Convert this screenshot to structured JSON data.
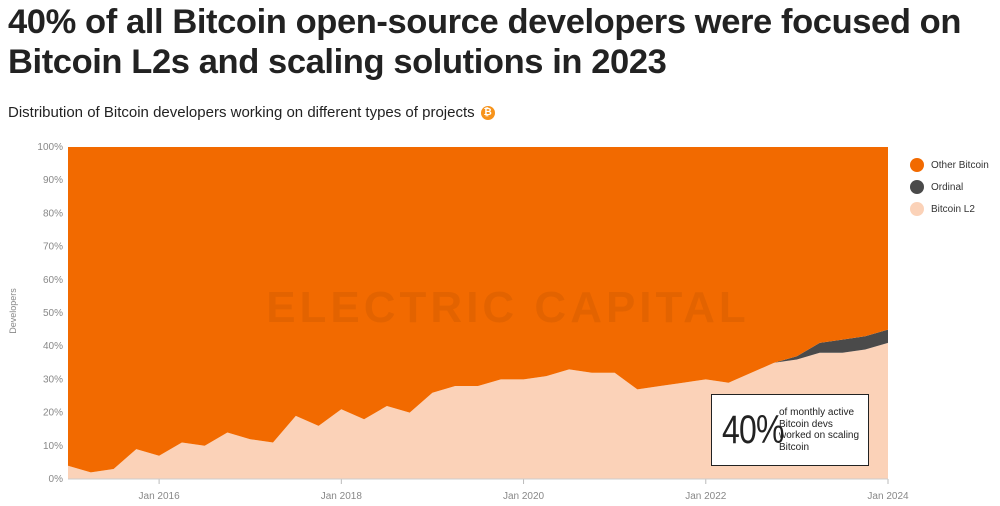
{
  "title": "40% of all Bitcoin open-source developers were focused on Bitcoin L2s and scaling solutions in  2023",
  "subtitle": "Distribution of Bitcoin developers working on different types of projects",
  "subtitle_icon": "bitcoin-icon",
  "watermark": "ELECTRIC CAPITAL",
  "callout": {
    "big": "40%",
    "text": "of monthly active Bitcoin devs worked on scaling Bitcoin"
  },
  "colors": {
    "other_bitcoin": "#f26a00",
    "ordinal": "#4a4a4a",
    "bitcoin_l2": "#fbd2b8"
  },
  "chart_data": {
    "type": "area",
    "stacked": true,
    "normalized": true,
    "ylabel": "Developers",
    "ylim": [
      0,
      100
    ],
    "yticks": [
      "0%",
      "10%",
      "20%",
      "30%",
      "40%",
      "50%",
      "60%",
      "70%",
      "80%",
      "90%",
      "100%"
    ],
    "xticks": [
      "Jan 2016",
      "Jan 2018",
      "Jan 2020",
      "Jan 2022",
      "Jan 2024"
    ],
    "xlim": [
      "2015-01",
      "2024-01"
    ],
    "legend_position": "right",
    "x": [
      "2015-01",
      "2015-04",
      "2015-07",
      "2015-10",
      "2016-01",
      "2016-04",
      "2016-07",
      "2016-10",
      "2017-01",
      "2017-04",
      "2017-07",
      "2017-10",
      "2018-01",
      "2018-04",
      "2018-07",
      "2018-10",
      "2019-01",
      "2019-04",
      "2019-07",
      "2019-10",
      "2020-01",
      "2020-04",
      "2020-07",
      "2020-10",
      "2021-01",
      "2021-04",
      "2021-07",
      "2021-10",
      "2022-01",
      "2022-04",
      "2022-07",
      "2022-10",
      "2023-01",
      "2023-04",
      "2023-07",
      "2023-10",
      "2024-01"
    ],
    "series": [
      {
        "name": "Bitcoin L2",
        "values": [
          4,
          2,
          3,
          9,
          7,
          11,
          10,
          14,
          12,
          11,
          19,
          16,
          21,
          18,
          22,
          20,
          26,
          28,
          28,
          30,
          30,
          31,
          33,
          32,
          32,
          27,
          28,
          29,
          30,
          29,
          32,
          35,
          36,
          38,
          38,
          39,
          41
        ]
      },
      {
        "name": "Ordinal",
        "values": [
          0,
          0,
          0,
          0,
          0,
          0,
          0,
          0,
          0,
          0,
          0,
          0,
          0,
          0,
          0,
          0,
          0,
          0,
          0,
          0,
          0,
          0,
          0,
          0,
          0,
          0,
          0,
          0,
          0,
          0,
          0,
          0,
          1,
          3,
          4,
          4,
          4
        ]
      },
      {
        "name": "Other Bitcoin",
        "values": [
          96,
          98,
          97,
          91,
          93,
          89,
          90,
          86,
          88,
          89,
          81,
          84,
          79,
          82,
          78,
          80,
          74,
          72,
          72,
          70,
          70,
          69,
          67,
          68,
          68,
          73,
          72,
          71,
          70,
          71,
          68,
          65,
          63,
          59,
          58,
          57,
          55
        ]
      }
    ]
  }
}
